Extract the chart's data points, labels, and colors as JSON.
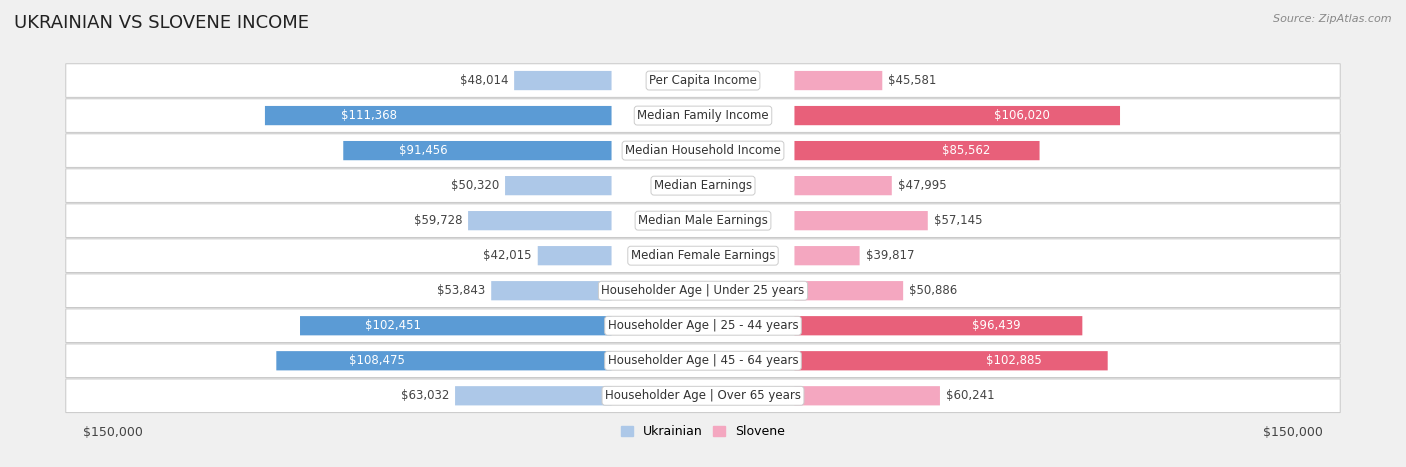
{
  "title": "UKRAINIAN VS SLOVENE INCOME",
  "source": "Source: ZipAtlas.com",
  "categories": [
    "Per Capita Income",
    "Median Family Income",
    "Median Household Income",
    "Median Earnings",
    "Median Male Earnings",
    "Median Female Earnings",
    "Householder Age | Under 25 years",
    "Householder Age | 25 - 44 years",
    "Householder Age | 45 - 64 years",
    "Householder Age | Over 65 years"
  ],
  "ukrainian_values": [
    48014,
    111368,
    91456,
    50320,
    59728,
    42015,
    53843,
    102451,
    108475,
    63032
  ],
  "slovene_values": [
    45581,
    106020,
    85562,
    47995,
    57145,
    39817,
    50886,
    96439,
    102885,
    60241
  ],
  "ukrainian_labels": [
    "$48,014",
    "$111,368",
    "$91,456",
    "$50,320",
    "$59,728",
    "$42,015",
    "$53,843",
    "$102,451",
    "$108,475",
    "$63,032"
  ],
  "slovene_labels": [
    "$45,581",
    "$106,020",
    "$85,562",
    "$47,995",
    "$57,145",
    "$39,817",
    "$50,886",
    "$96,439",
    "$102,885",
    "$60,241"
  ],
  "ukr_color_light": "#adc8e8",
  "ukr_color_dark": "#5b9bd5",
  "slo_color_light": "#f4a7c0",
  "slo_color_dark": "#e8607a",
  "ukr_inside_threshold": 75000,
  "slo_inside_threshold": 75000,
  "max_value": 150000,
  "bg_color": "#f0f0f0",
  "row_bg": "#ffffff",
  "row_border": "#c8c8c8",
  "title_fontsize": 13,
  "label_fontsize": 8.5,
  "axis_fontsize": 9
}
